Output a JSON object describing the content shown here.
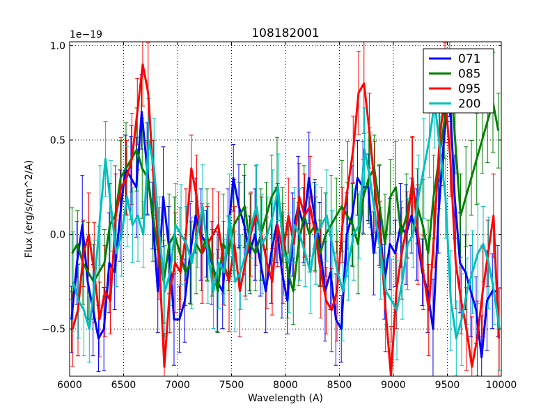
{
  "chart_data": {
    "type": "line",
    "title": "108182001",
    "xlabel": "Wavelength (A)",
    "ylabel": "Flux (erg/s/cm^2/A)",
    "offset_text": "1e−19",
    "xlim": [
      6000,
      10000
    ],
    "ylim": [
      -0.75,
      1.02
    ],
    "xticks": [
      6000,
      6500,
      7000,
      7500,
      8000,
      8500,
      9000,
      9500,
      10000
    ],
    "xtick_labels": [
      "6000",
      "6500",
      "7000",
      "7500",
      "8000",
      "8500",
      "9000",
      "9500",
      "10000"
    ],
    "yticks": [
      -0.5,
      0.0,
      0.5,
      1.0
    ],
    "ytick_labels": [
      "−0.5",
      "0.0",
      "0.5",
      "1.0"
    ],
    "grid": true,
    "legend_position": "top-right",
    "x": [
      6025,
      6075,
      6125,
      6175,
      6225,
      6275,
      6325,
      6375,
      6425,
      6475,
      6525,
      6575,
      6625,
      6675,
      6725,
      6775,
      6825,
      6875,
      6925,
      6975,
      7025,
      7075,
      7125,
      7175,
      7225,
      7275,
      7325,
      7375,
      7425,
      7475,
      7525,
      7575,
      7625,
      7675,
      7725,
      7775,
      7825,
      7875,
      7925,
      7975,
      8025,
      8075,
      8125,
      8175,
      8225,
      8275,
      8325,
      8375,
      8425,
      8475,
      8525,
      8575,
      8625,
      8675,
      8725,
      8775,
      8825,
      8875,
      8925,
      8975,
      9025,
      9075,
      9125,
      9175,
      9225,
      9275,
      9325,
      9375,
      9425,
      9475,
      9525,
      9575,
      9625,
      9675,
      9725,
      9775,
      9825,
      9875,
      9925,
      9975
    ],
    "series": [
      {
        "name": "071",
        "color": "#0000ff",
        "values": [
          -0.45,
          -0.15,
          0.05,
          -0.25,
          -0.4,
          -0.55,
          -0.5,
          -0.15,
          -0.2,
          0.1,
          0.35,
          0.3,
          0.25,
          0.65,
          0.35,
          0.1,
          -0.3,
          0.2,
          -0.05,
          -0.45,
          -0.45,
          -0.35,
          -0.1,
          0.1,
          0.0,
          -0.05,
          -0.15,
          -0.25,
          -0.3,
          0.0,
          0.3,
          0.15,
          0.05,
          -0.1,
          0.0,
          -0.15,
          -0.3,
          -0.1,
          0.05,
          -0.2,
          -0.35,
          0.0,
          0.15,
          0.05,
          0.3,
          0.1,
          -0.05,
          -0.3,
          -0.2,
          -0.45,
          -0.5,
          0.0,
          0.1,
          0.3,
          0.25,
          0.25,
          -0.1,
          0.1,
          -0.25,
          -0.05,
          -0.1,
          0.05,
          0.0,
          0.1,
          0.0,
          -0.2,
          -0.3,
          -0.5,
          0.1,
          0.5,
          0.8,
          0.2,
          -0.15,
          -0.2,
          -0.3,
          -0.4,
          -0.65,
          -0.35,
          -0.3,
          -0.3
        ]
      },
      {
        "name": "085",
        "color": "#008000",
        "values": [
          -0.1,
          -0.05,
          -0.15,
          -0.2,
          -0.25,
          -0.2,
          -0.15,
          0.05,
          0.1,
          0.3,
          0.35,
          0.4,
          0.45,
          0.35,
          0.3,
          0.1,
          -0.1,
          -0.25,
          -0.05,
          0.0,
          -0.1,
          -0.2,
          -0.15,
          -0.05,
          -0.1,
          0.0,
          -0.15,
          -0.3,
          -0.05,
          -0.1,
          0.05,
          0.1,
          0.15,
          -0.05,
          -0.1,
          0.0,
          0.1,
          0.2,
          0.25,
          0.05,
          -0.2,
          -0.3,
          -0.05,
          0.1,
          0.0,
          0.05,
          -0.1,
          0.0,
          0.05,
          0.1,
          0.15,
          0.1,
          0.05,
          -0.05,
          0.2,
          0.3,
          0.35,
          0.15,
          -0.05,
          0.2,
          0.25,
          0.0,
          0.1,
          0.25,
          0.15,
          0.05,
          -0.1,
          0.2,
          0.4,
          0.6,
          0.9,
          0.5,
          0.1,
          0.2,
          0.3,
          0.4,
          0.5,
          0.6,
          0.7,
          0.55
        ]
      },
      {
        "name": "095",
        "color": "#ff0000",
        "values": [
          -0.5,
          -0.4,
          -0.1,
          0.0,
          -0.2,
          -0.45,
          -0.3,
          -0.35,
          0.1,
          0.25,
          0.3,
          0.4,
          0.65,
          0.9,
          0.75,
          0.3,
          -0.1,
          -0.7,
          -0.3,
          -0.15,
          -0.2,
          0.0,
          0.35,
          0.2,
          -0.1,
          -0.05,
          0.0,
          0.05,
          -0.15,
          -0.25,
          -0.05,
          -0.3,
          -0.15,
          0.0,
          0.1,
          0.0,
          -0.15,
          -0.25,
          0.05,
          -0.1,
          0.1,
          -0.05,
          0.2,
          0.1,
          0.15,
          0.0,
          -0.2,
          -0.35,
          -0.4,
          -0.3,
          0.05,
          0.25,
          0.45,
          0.75,
          0.8,
          0.55,
          0.25,
          0.0,
          -0.4,
          -0.75,
          -0.3,
          -0.1,
          0.05,
          0.3,
          0.0,
          -0.2,
          -0.4,
          0.0,
          0.5,
          0.75,
          0.4,
          -0.15,
          -0.35,
          -0.5,
          -0.7,
          -0.55,
          -0.3,
          -0.1,
          0.1,
          -0.55
        ]
      },
      {
        "name": "200",
        "color": "#00bfbf",
        "values": [
          -0.25,
          -0.35,
          -0.4,
          -0.5,
          -0.25,
          0.1,
          0.4,
          0.15,
          -0.1,
          0.0,
          0.2,
          0.05,
          0.1,
          0.0,
          0.5,
          0.35,
          0.0,
          -0.3,
          -0.2,
          0.05,
          0.0,
          -0.05,
          -0.15,
          0.0,
          0.15,
          -0.1,
          -0.3,
          -0.15,
          -0.2,
          0.1,
          -0.25,
          -0.2,
          -0.1,
          0.05,
          0.15,
          -0.05,
          0.0,
          0.1,
          0.25,
          -0.1,
          -0.15,
          0.05,
          0.0,
          -0.1,
          -0.2,
          0.0,
          0.05,
          0.1,
          -0.05,
          -0.2,
          -0.3,
          -0.15,
          0.0,
          0.05,
          0.45,
          0.3,
          0.1,
          -0.1,
          -0.3,
          -0.35,
          -0.4,
          -0.25,
          -0.05,
          0.0,
          0.2,
          0.35,
          0.5,
          0.7,
          0.45,
          0.2,
          -0.35,
          -0.55,
          -0.45,
          -0.3,
          -0.2,
          -0.1,
          -0.05,
          -0.15,
          -0.3,
          -0.5
        ]
      }
    ],
    "error_bar": 0.22
  }
}
